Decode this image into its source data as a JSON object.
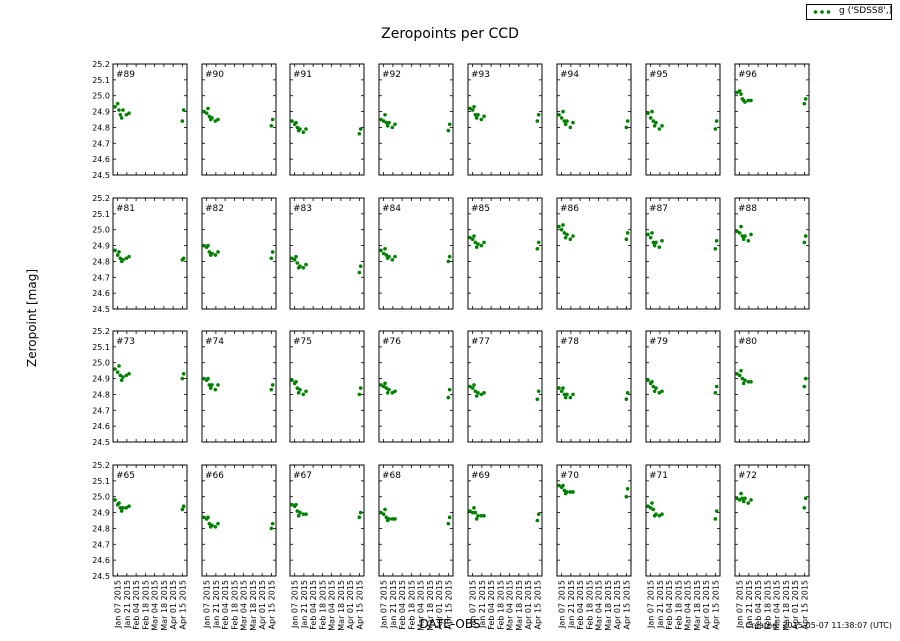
{
  "chart_data": {
    "type": "scatter",
    "title": "Zeropoints per CCD",
    "xlabel": "DATE-OBS",
    "ylabel": "Zeropoint [mag]",
    "ylim": [
      24.5,
      25.2
    ],
    "yticks": [
      "24.5",
      "24.6",
      "24.7",
      "24.8",
      "24.9",
      "25.0",
      "25.1",
      "25.2"
    ],
    "xlim": [
      "2015-01-01",
      "2015-04-22"
    ],
    "xticks": [
      "Jan 07 2015",
      "Jan 21 2015",
      "Feb 04 2015",
      "Feb 18 2015",
      "Mar 04 2015",
      "Mar 18 2015",
      "Apr 01 2015",
      "Apr 15 2015"
    ],
    "legend": {
      "label": "g ('SDSS8',)",
      "placement": "top-right"
    },
    "footer": "Created: 2015-05-07 11:38:07 (UTC)",
    "marker_color": "#008000",
    "dates": [
      "2015-01-04",
      "2015-01-08",
      "2015-01-10",
      "2015-01-12",
      "2015-01-14",
      "2015-01-16",
      "2015-01-21",
      "2015-01-25",
      "2015-04-15",
      "2015-04-17"
    ],
    "panels": [
      {
        "label": "#89",
        "values": [
          24.93,
          24.95,
          24.91,
          24.88,
          24.86,
          24.91,
          24.88,
          24.89,
          24.84,
          24.91
        ]
      },
      {
        "label": "#90",
        "values": [
          24.9,
          24.89,
          24.92,
          24.87,
          24.85,
          24.86,
          24.84,
          24.85,
          24.81,
          24.85
        ]
      },
      {
        "label": "#91",
        "values": [
          24.84,
          24.82,
          24.83,
          24.8,
          24.78,
          24.79,
          24.77,
          24.79,
          24.76,
          24.79
        ]
      },
      {
        "label": "#92",
        "values": [
          24.85,
          24.84,
          24.88,
          24.83,
          24.81,
          24.83,
          24.8,
          24.82,
          24.78,
          24.82
        ]
      },
      {
        "label": "#93",
        "values": [
          24.92,
          24.91,
          24.93,
          24.88,
          24.86,
          24.88,
          24.85,
          24.87,
          24.84,
          24.88
        ]
      },
      {
        "label": "#94",
        "values": [
          24.88,
          24.86,
          24.9,
          24.84,
          24.82,
          24.84,
          24.8,
          24.83,
          24.8,
          24.84
        ]
      },
      {
        "label": "#95",
        "values": [
          24.89,
          24.86,
          24.9,
          24.84,
          24.81,
          24.83,
          24.79,
          24.81,
          24.79,
          24.84
        ]
      },
      {
        "label": "#96",
        "values": [
          25.02,
          25.03,
          25.01,
          24.98,
          24.97,
          24.96,
          24.97,
          24.97,
          24.95,
          24.98
        ]
      },
      {
        "label": "#81",
        "values": [
          24.87,
          24.84,
          24.86,
          24.82,
          24.8,
          24.81,
          24.82,
          24.83,
          24.81,
          24.82
        ]
      },
      {
        "label": "#82",
        "values": [
          24.9,
          24.89,
          24.9,
          24.86,
          24.84,
          24.85,
          24.84,
          24.86,
          24.82,
          24.86
        ]
      },
      {
        "label": "#83",
        "values": [
          24.82,
          24.81,
          24.83,
          24.79,
          24.76,
          24.77,
          24.76,
          24.78,
          24.73,
          24.77
        ]
      },
      {
        "label": "#84",
        "values": [
          24.87,
          24.85,
          24.88,
          24.84,
          24.82,
          24.83,
          24.81,
          24.83,
          24.8,
          24.83
        ]
      },
      {
        "label": "#85",
        "values": [
          24.95,
          24.94,
          24.96,
          24.92,
          24.89,
          24.91,
          24.9,
          24.92,
          24.88,
          24.92
        ]
      },
      {
        "label": "#86",
        "values": [
          25.02,
          25.0,
          25.03,
          24.98,
          24.95,
          24.97,
          24.94,
          24.96,
          24.94,
          24.98
        ]
      },
      {
        "label": "#87",
        "values": [
          24.97,
          24.95,
          24.98,
          24.92,
          24.9,
          24.92,
          24.89,
          24.93,
          24.88,
          24.93
        ]
      },
      {
        "label": "#88",
        "values": [
          24.99,
          24.98,
          25.02,
          24.96,
          24.94,
          24.96,
          24.93,
          24.97,
          24.92,
          24.96
        ]
      },
      {
        "label": "#73",
        "values": [
          24.96,
          24.94,
          24.98,
          24.92,
          24.89,
          24.91,
          24.92,
          24.93,
          24.9,
          24.93
        ]
      },
      {
        "label": "#74",
        "values": [
          24.9,
          24.89,
          24.9,
          24.86,
          24.84,
          24.86,
          24.83,
          24.86,
          24.83,
          24.86
        ]
      },
      {
        "label": "#75",
        "values": [
          24.89,
          24.87,
          24.88,
          24.84,
          24.81,
          24.83,
          24.8,
          24.82,
          24.8,
          24.84
        ]
      },
      {
        "label": "#76",
        "values": [
          24.86,
          24.85,
          24.87,
          24.84,
          24.81,
          24.83,
          24.81,
          24.82,
          24.78,
          24.83
        ]
      },
      {
        "label": "#77",
        "values": [
          24.85,
          24.84,
          24.86,
          24.82,
          24.79,
          24.81,
          24.8,
          24.81,
          24.77,
          24.82
        ]
      },
      {
        "label": "#78",
        "values": [
          24.84,
          24.82,
          24.84,
          24.8,
          24.78,
          24.8,
          24.78,
          24.8,
          24.77,
          24.81
        ]
      },
      {
        "label": "#79",
        "values": [
          24.89,
          24.87,
          24.88,
          24.85,
          24.82,
          24.84,
          24.81,
          24.82,
          24.81,
          24.85
        ]
      },
      {
        "label": "#80",
        "values": [
          24.93,
          24.92,
          24.95,
          24.9,
          24.87,
          24.89,
          24.88,
          24.88,
          24.85,
          24.9
        ]
      },
      {
        "label": "#65",
        "values": [
          24.98,
          24.95,
          24.96,
          24.93,
          24.91,
          24.93,
          24.93,
          24.94,
          24.92,
          24.94
        ]
      },
      {
        "label": "#66",
        "values": [
          24.87,
          24.86,
          24.87,
          24.83,
          24.81,
          24.82,
          24.81,
          24.83,
          24.8,
          24.83
        ]
      },
      {
        "label": "#67",
        "values": [
          24.95,
          24.94,
          24.95,
          24.91,
          24.88,
          24.9,
          24.89,
          24.89,
          24.87,
          24.9
        ]
      },
      {
        "label": "#68",
        "values": [
          24.9,
          24.89,
          24.92,
          24.87,
          24.85,
          24.86,
          24.86,
          24.86,
          24.83,
          24.87
        ]
      },
      {
        "label": "#69",
        "values": [
          24.91,
          24.9,
          24.93,
          24.9,
          24.86,
          24.88,
          24.88,
          24.88,
          24.85,
          24.89
        ]
      },
      {
        "label": "#70",
        "values": [
          25.07,
          25.06,
          25.07,
          25.04,
          25.02,
          25.03,
          25.03,
          25.03,
          25.0,
          25.05
        ]
      },
      {
        "label": "#71",
        "values": [
          24.94,
          24.93,
          24.96,
          24.92,
          24.88,
          24.89,
          24.88,
          24.89,
          24.86,
          24.91
        ]
      },
      {
        "label": "#72",
        "values": [
          24.99,
          24.98,
          25.02,
          24.99,
          24.97,
          24.99,
          24.96,
          24.98,
          24.93,
          24.99
        ]
      }
    ]
  }
}
